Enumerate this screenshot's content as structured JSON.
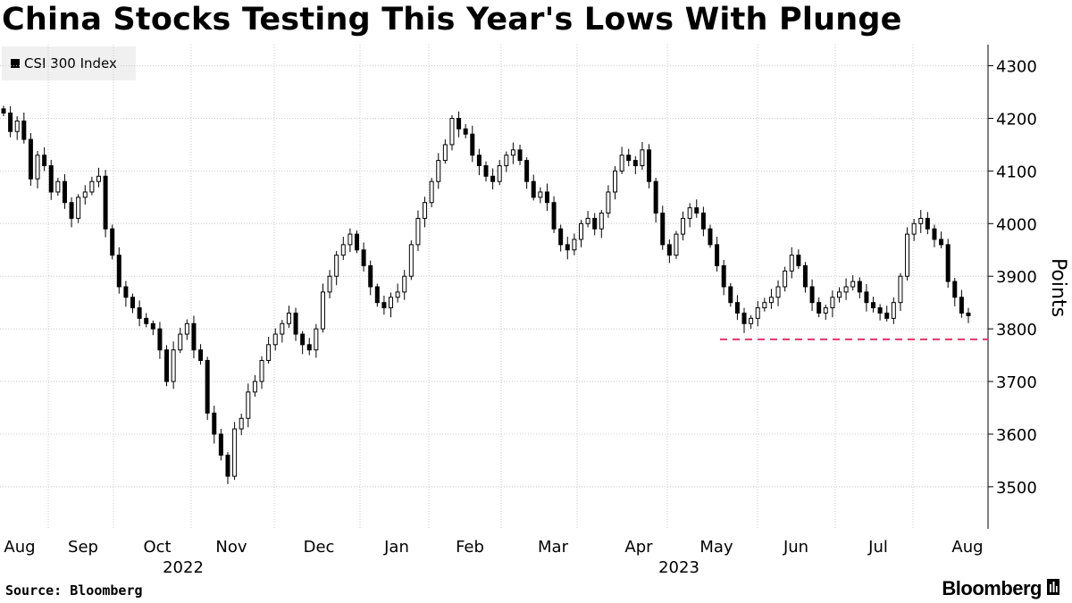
{
  "title": "China Stocks Testing This Year's Lows With Plunge",
  "legend": {
    "label": "CSI 300 Index",
    "color": "#000000"
  },
  "source": "Source: Bloomberg",
  "brand": {
    "name": "Bloomberg",
    "logo_icon": "bloomberg-terminal-icon"
  },
  "chart_data": {
    "type": "candlestick",
    "title": "China Stocks Testing This Year's Lows With Plunge",
    "ylabel": "Points",
    "xlabel": "",
    "ylim": [
      3420,
      4340
    ],
    "y_ticks": [
      3500,
      3600,
      3700,
      3800,
      3900,
      4000,
      4100,
      4200,
      4300
    ],
    "x_ticks": [
      "Aug",
      "Sep",
      "Oct",
      "Nov",
      "Dec",
      "Jan",
      "Feb",
      "Mar",
      "Apr",
      "May",
      "Jun",
      "Jul",
      "Aug"
    ],
    "year_labels": [
      "2022",
      "2023"
    ],
    "grid": true,
    "y_axis_side": "right",
    "legend_position": "top-left",
    "colors": {
      "candle": "#000000",
      "grid": "#c8c8c8",
      "reference_line": "#e8336b"
    },
    "reference_line": {
      "value": 3780,
      "start": "May 2023",
      "style": "dashed"
    },
    "series": [
      {
        "name": "CSI 300 Index",
        "close": [
          4210,
          4175,
          4195,
          4160,
          4085,
          4130,
          4110,
          4060,
          4080,
          4040,
          4010,
          4050,
          4060,
          4080,
          4090,
          3990,
          3940,
          3880,
          3860,
          3840,
          3820,
          3810,
          3800,
          3760,
          3700,
          3760,
          3790,
          3810,
          3760,
          3740,
          3640,
          3600,
          3560,
          3520,
          3610,
          3630,
          3680,
          3700,
          3740,
          3770,
          3790,
          3810,
          3830,
          3790,
          3770,
          3760,
          3800,
          3870,
          3900,
          3940,
          3960,
          3980,
          3950,
          3920,
          3880,
          3850,
          3840,
          3860,
          3870,
          3900,
          3960,
          4010,
          4040,
          4080,
          4120,
          4150,
          4200,
          4180,
          4170,
          4130,
          4110,
          4090,
          4080,
          4110,
          4130,
          4140,
          4120,
          4080,
          4050,
          4060,
          4040,
          3990,
          3960,
          3950,
          3970,
          4000,
          4010,
          3990,
          4020,
          4060,
          4100,
          4130,
          4120,
          4110,
          4140,
          4080,
          4020,
          3960,
          3940,
          3980,
          4010,
          4030,
          4020,
          3990,
          3960,
          3920,
          3880,
          3850,
          3830,
          3810,
          3820,
          3840,
          3850,
          3860,
          3880,
          3910,
          3940,
          3920,
          3880,
          3850,
          3830,
          3840,
          3860,
          3870,
          3880,
          3890,
          3870,
          3850,
          3840,
          3830,
          3820,
          3850,
          3900,
          3980,
          4000,
          4010,
          3990,
          3970,
          3960,
          3890,
          3860,
          3830,
          3825
        ]
      }
    ]
  }
}
